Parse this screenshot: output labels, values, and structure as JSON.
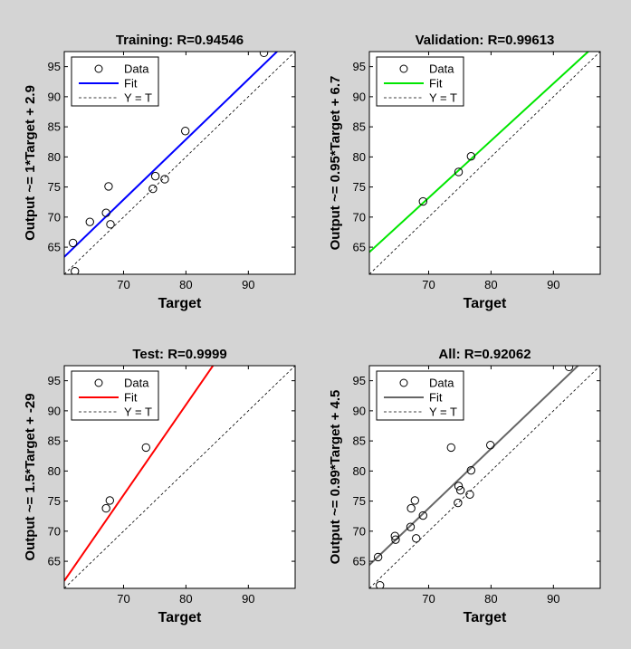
{
  "figure": {
    "background": "#d4d4d4"
  },
  "chart_data": [
    {
      "type": "scatter",
      "title": "Training: R=0.94546",
      "xlabel": "Target",
      "ylabel": "Output ~= 1*Target + 2.9",
      "xlim": [
        60.5,
        97.5
      ],
      "ylim": [
        60.5,
        97.5
      ],
      "xticks": [
        70,
        80,
        90
      ],
      "yticks": [
        65,
        70,
        75,
        80,
        85,
        90,
        95
      ],
      "fit": {
        "slope": 1.0,
        "intercept": 2.9,
        "color": "#0000ff"
      },
      "legend": {
        "position": "top-left",
        "entries": [
          "Data",
          "Fit",
          "Y = T"
        ]
      },
      "points": [
        [
          61.9,
          65.7
        ],
        [
          62.2,
          61.0
        ],
        [
          64.6,
          69.2
        ],
        [
          67.2,
          70.7
        ],
        [
          67.6,
          75.1
        ],
        [
          67.9,
          68.8
        ],
        [
          74.7,
          74.7
        ],
        [
          75.1,
          76.8
        ],
        [
          76.6,
          76.3
        ],
        [
          79.9,
          84.3
        ],
        [
          92.5,
          97.3
        ]
      ]
    },
    {
      "type": "scatter",
      "title": "Validation: R=0.99613",
      "xlabel": "Target",
      "ylabel": "Output ~= 0.95*Target + 6.7",
      "xlim": [
        60.5,
        97.5
      ],
      "ylim": [
        60.5,
        97.5
      ],
      "xticks": [
        70,
        80,
        90
      ],
      "yticks": [
        65,
        70,
        75,
        80,
        85,
        90,
        95
      ],
      "fit": {
        "slope": 0.95,
        "intercept": 6.7,
        "color": "#00e600"
      },
      "legend": {
        "position": "top-left",
        "entries": [
          "Data",
          "Fit",
          "Y = T"
        ]
      },
      "points": [
        [
          69.1,
          72.6
        ],
        [
          74.8,
          77.5
        ],
        [
          76.8,
          80.1
        ]
      ]
    },
    {
      "type": "scatter",
      "title": "Test: R=0.9999",
      "xlabel": "Target",
      "ylabel": "Output ~= 1.5*Target + -29",
      "xlim": [
        60.5,
        97.5
      ],
      "ylim": [
        60.5,
        97.5
      ],
      "xticks": [
        70,
        80,
        90
      ],
      "yticks": [
        65,
        70,
        75,
        80,
        85,
        90,
        95
      ],
      "fit": {
        "slope": 1.5,
        "intercept": -29,
        "color": "#ff0000"
      },
      "legend": {
        "position": "top-left",
        "entries": [
          "Data",
          "Fit",
          "Y = T"
        ]
      },
      "points": [
        [
          67.2,
          73.8
        ],
        [
          67.8,
          75.1
        ],
        [
          73.6,
          83.9
        ]
      ]
    },
    {
      "type": "scatter",
      "title": "All: R=0.92062",
      "xlabel": "Target",
      "ylabel": "Output ~= 0.99*Target + 4.5",
      "xlim": [
        60.5,
        97.5
      ],
      "ylim": [
        60.5,
        97.5
      ],
      "xticks": [
        70,
        80,
        90
      ],
      "yticks": [
        65,
        70,
        75,
        80,
        85,
        90,
        95
      ],
      "fit": {
        "slope": 0.99,
        "intercept": 4.5,
        "color": "#666666"
      },
      "legend": {
        "position": "top-left",
        "entries": [
          "Data",
          "Fit",
          "Y = T"
        ]
      },
      "points": [
        [
          61.9,
          65.7
        ],
        [
          62.2,
          61.0
        ],
        [
          64.6,
          69.2
        ],
        [
          64.7,
          68.6
        ],
        [
          67.1,
          70.7
        ],
        [
          67.2,
          73.8
        ],
        [
          67.8,
          75.1
        ],
        [
          68.0,
          68.8
        ],
        [
          69.1,
          72.6
        ],
        [
          73.6,
          83.9
        ],
        [
          74.7,
          74.7
        ],
        [
          74.8,
          77.5
        ],
        [
          75.1,
          76.8
        ],
        [
          76.6,
          76.1
        ],
        [
          76.8,
          80.1
        ],
        [
          79.9,
          84.3
        ],
        [
          92.5,
          97.3
        ]
      ]
    }
  ]
}
